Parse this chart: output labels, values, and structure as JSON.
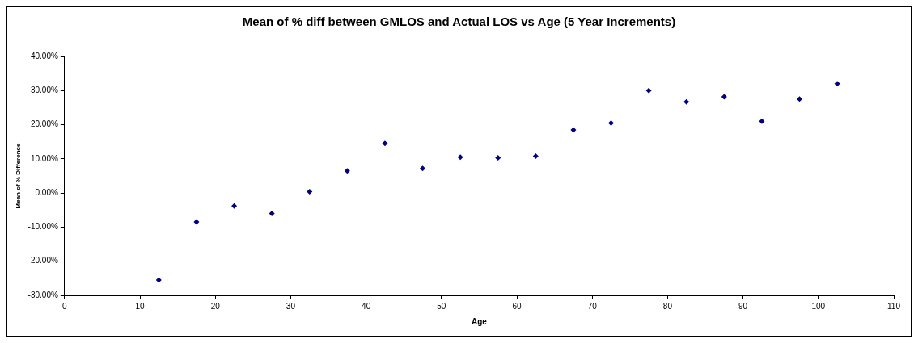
{
  "chart_data": {
    "type": "scatter",
    "title": "Mean of % diff between GMLOS and Actual LOS vs Age (5 Year Increments)",
    "xlabel": "Age",
    "ylabel": "Mean of % Difference",
    "x": [
      12.5,
      17.5,
      22.5,
      27.5,
      32.5,
      37.5,
      42.5,
      47.5,
      52.5,
      57.5,
      62.5,
      67.5,
      72.5,
      77.5,
      82.5,
      87.5,
      92.5,
      97.5,
      102.5
    ],
    "series": [
      {
        "color": "#000080",
        "values": [
          -25.5,
          -8.5,
          -3.8,
          -6,
          0.4,
          6.5,
          14.5,
          7.2,
          10.5,
          10.3,
          10.8,
          18.5,
          20.5,
          30,
          26.7,
          28.2,
          21,
          27.5,
          32
        ]
      }
    ],
    "xlim": [
      0,
      110
    ],
    "xticks": [
      0,
      10,
      20,
      30,
      40,
      50,
      60,
      70,
      80,
      90,
      100,
      110
    ],
    "ylim": [
      -30,
      40
    ],
    "yticks": [
      {
        "value": -30,
        "label": "-30.00%"
      },
      {
        "value": -20,
        "label": "-20.00%"
      },
      {
        "value": -10,
        "label": "-10.00%"
      },
      {
        "value": 0,
        "label": "0.00%"
      },
      {
        "value": 10,
        "label": "10.00%"
      },
      {
        "value": 20,
        "label": "20.00%"
      },
      {
        "value": 30,
        "label": "30.00%"
      },
      {
        "value": 40,
        "label": "40.00%"
      }
    ],
    "marker": "diamond",
    "grid": false,
    "legend": false
  }
}
